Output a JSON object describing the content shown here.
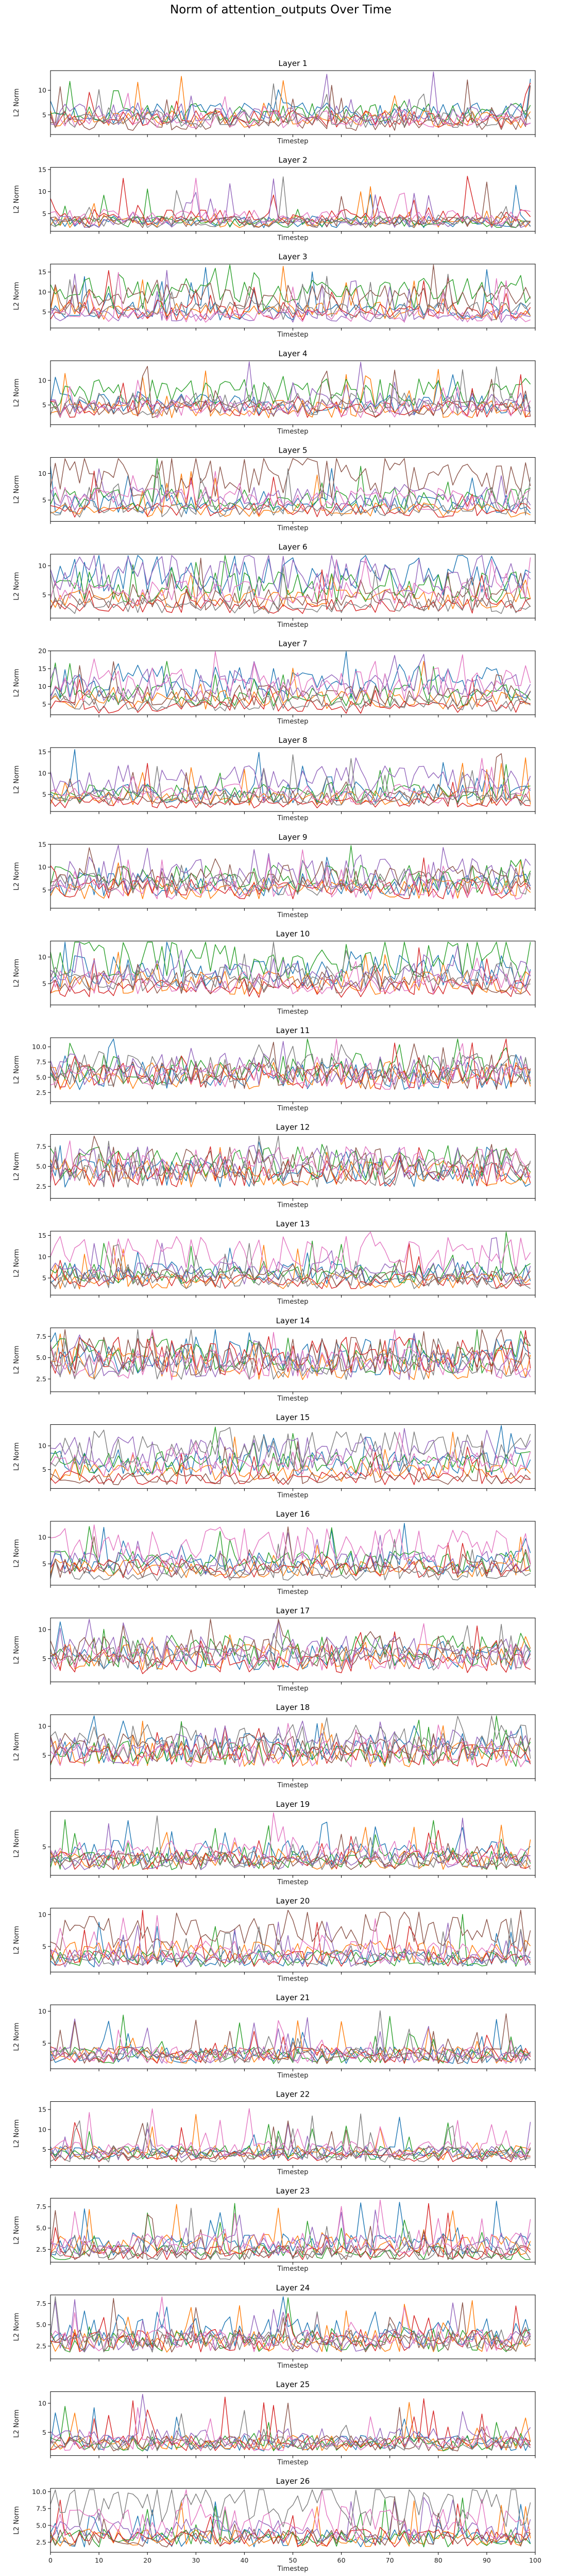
{
  "chart_data": {
    "type": "line",
    "title": "Norm of attention_outputs Over Time",
    "xlabel": "Timestep",
    "ylabel": "L2 Norm",
    "xlim": [
      0,
      100
    ],
    "xticks": [
      0,
      10,
      20,
      30,
      40,
      50,
      60,
      70,
      80,
      90,
      100
    ],
    "grid": false,
    "colors": [
      "#1f77b4",
      "#ff7f0e",
      "#2ca02c",
      "#d62728",
      "#9467bd",
      "#8c564b",
      "#e377c2",
      "#7f7f7f"
    ],
    "layers": [
      {
        "title": "Layer 1",
        "ylim": [
          1,
          14
        ],
        "yticks": [
          5,
          10
        ],
        "ytick_labels": [
          "5",
          "10"
        ],
        "series_levels": [
          5,
          4,
          5,
          4,
          5,
          3,
          4,
          4
        ]
      },
      {
        "title": "Layer 2",
        "ylim": [
          1,
          15.5
        ],
        "yticks": [
          5,
          10,
          15
        ],
        "ytick_labels": [
          "5",
          "10",
          "15"
        ],
        "series_levels": [
          3,
          3,
          3,
          4,
          3,
          3,
          4,
          3
        ]
      },
      {
        "title": "Layer 3",
        "ylim": [
          1,
          17
        ],
        "yticks": [
          5,
          10,
          15
        ],
        "ytick_labels": [
          "5",
          "10",
          "15"
        ],
        "series_levels": [
          5,
          5,
          9,
          5,
          4,
          8,
          4,
          5
        ]
      },
      {
        "title": "Layer 4",
        "ylim": [
          1,
          14
        ],
        "yticks": [
          5,
          10
        ],
        "ytick_labels": [
          "5",
          "10"
        ],
        "series_levels": [
          5,
          4,
          7,
          4,
          5,
          4,
          4,
          5
        ]
      },
      {
        "title": "Layer 5",
        "ylim": [
          1,
          13
        ],
        "yticks": [
          5,
          10
        ],
        "ytick_labels": [
          "5",
          "10"
        ],
        "series_levels": [
          4,
          3,
          5,
          3,
          5,
          9,
          5,
          3
        ]
      },
      {
        "title": "Layer 6",
        "ylim": [
          1,
          12
        ],
        "yticks": [
          5,
          10
        ],
        "ytick_labels": [
          "5",
          "10"
        ],
        "series_levels": [
          8,
          4,
          6,
          3,
          8,
          4,
          5,
          3
        ]
      },
      {
        "title": "Layer 7",
        "ylim": [
          2,
          20
        ],
        "yticks": [
          5,
          10,
          15,
          20
        ],
        "ytick_labels": [
          "5",
          "10",
          "15",
          "20"
        ],
        "series_levels": [
          11,
          6,
          7,
          4,
          9,
          7,
          10,
          5
        ]
      },
      {
        "title": "Layer 8",
        "ylim": [
          1,
          16
        ],
        "yticks": [
          5,
          10,
          15
        ],
        "ytick_labels": [
          "5",
          "10",
          "15"
        ],
        "series_levels": [
          5,
          4,
          5,
          3,
          8,
          4,
          5,
          4
        ]
      },
      {
        "title": "Layer 9",
        "ylim": [
          1,
          15
        ],
        "yticks": [
          5,
          10,
          15
        ],
        "ytick_labels": [
          "5",
          "10",
          "15"
        ],
        "series_levels": [
          6,
          5,
          7,
          5,
          8,
          7,
          5,
          6
        ]
      },
      {
        "title": "Layer 10",
        "ylim": [
          1,
          13
        ],
        "yticks": [
          5,
          10
        ],
        "ytick_labels": [
          "5",
          "10"
        ],
        "series_levels": [
          7,
          5,
          9,
          4,
          6,
          5,
          5,
          6
        ]
      },
      {
        "title": "Layer 11",
        "ylim": [
          1,
          11.5
        ],
        "yticks": [
          2.5,
          5,
          7.5,
          10
        ],
        "ytick_labels": [
          "2.5",
          "5.0",
          "7.5",
          "10.0"
        ],
        "series_levels": [
          5,
          5,
          6,
          5,
          6,
          5,
          5,
          6
        ]
      },
      {
        "title": "Layer 12",
        "ylim": [
          1,
          9
        ],
        "yticks": [
          2.5,
          5,
          7.5
        ],
        "ytick_labels": [
          "2.5",
          "5.0",
          "7.5"
        ],
        "series_levels": [
          4,
          4,
          5,
          4,
          5,
          5,
          5,
          4
        ]
      },
      {
        "title": "Layer 13",
        "ylim": [
          1,
          16
        ],
        "yticks": [
          5,
          10,
          15
        ],
        "ytick_labels": [
          "5",
          "10",
          "15"
        ],
        "series_levels": [
          6,
          4,
          6,
          4,
          6,
          5,
          10,
          4
        ]
      },
      {
        "title": "Layer 14",
        "ylim": [
          1,
          8.5
        ],
        "yticks": [
          2.5,
          5,
          7.5
        ],
        "ytick_labels": [
          "2.5",
          "5.0",
          "7.5"
        ],
        "series_levels": [
          5,
          4,
          5,
          5,
          4,
          5,
          4,
          4
        ]
      },
      {
        "title": "Layer 15",
        "ylim": [
          1,
          14.5
        ],
        "yticks": [
          5,
          10
        ],
        "ytick_labels": [
          "5",
          "10"
        ],
        "series_levels": [
          6,
          4,
          6,
          3,
          8,
          3,
          6,
          9
        ]
      },
      {
        "title": "Layer 16",
        "ylim": [
          1,
          13
        ],
        "yticks": [
          5,
          10
        ],
        "ytick_labels": [
          "5",
          "10"
        ],
        "series_levels": [
          5,
          4,
          5,
          4,
          5,
          4,
          8,
          3
        ]
      },
      {
        "title": "Layer 17",
        "ylim": [
          1,
          12
        ],
        "yticks": [
          5,
          10
        ],
        "ytick_labels": [
          "5",
          "10"
        ],
        "series_levels": [
          5,
          5,
          6,
          4,
          6,
          6,
          5,
          5
        ]
      },
      {
        "title": "Layer 18",
        "ylim": [
          1,
          12
        ],
        "yticks": [
          5,
          10
        ],
        "ytick_labels": [
          "5",
          "10"
        ],
        "series_levels": [
          6,
          5,
          5,
          5,
          6,
          6,
          5,
          7
        ]
      },
      {
        "title": "Layer 19",
        "ylim": [
          1,
          10
        ],
        "yticks": [
          5
        ],
        "ytick_labels": [
          "5"
        ],
        "series_levels": [
          4,
          3,
          3,
          3,
          3,
          3,
          4,
          3
        ]
      },
      {
        "title": "Layer 20",
        "ylim": [
          1,
          11
        ],
        "yticks": [
          5,
          10
        ],
        "ytick_labels": [
          "5",
          "10"
        ],
        "series_levels": [
          3,
          4,
          3,
          3,
          3,
          7,
          4,
          3
        ]
      },
      {
        "title": "Layer 21",
        "ylim": [
          1,
          11
        ],
        "yticks": [
          5,
          10
        ],
        "ytick_labels": [
          "5",
          "10"
        ],
        "series_levels": [
          3,
          3,
          3,
          3,
          3,
          3,
          3,
          3
        ]
      },
      {
        "title": "Layer 22",
        "ylim": [
          1,
          17
        ],
        "yticks": [
          5,
          10,
          15
        ],
        "ytick_labels": [
          "5",
          "10",
          "15"
        ],
        "series_levels": [
          4,
          4,
          4,
          3,
          4,
          4,
          5,
          3
        ]
      },
      {
        "title": "Layer 23",
        "ylim": [
          1,
          8.5
        ],
        "yticks": [
          2.5,
          5,
          7.5
        ],
        "ytick_labels": [
          "2.5",
          "5.0",
          "7.5"
        ],
        "series_levels": [
          3,
          3,
          2,
          2,
          3,
          2,
          3,
          2
        ]
      },
      {
        "title": "Layer 24",
        "ylim": [
          1,
          8.5
        ],
        "yticks": [
          2.5,
          5,
          7.5
        ],
        "ytick_labels": [
          "2.5",
          "5.0",
          "7.5"
        ],
        "series_levels": [
          4,
          3,
          3,
          3,
          3,
          3,
          3,
          3
        ]
      },
      {
        "title": "Layer 25",
        "ylim": [
          1,
          12
        ],
        "yticks": [
          5,
          10
        ],
        "ytick_labels": [
          "5",
          "10"
        ],
        "series_levels": [
          3,
          3,
          3,
          3,
          4,
          3,
          3,
          3
        ]
      },
      {
        "title": "Layer 26",
        "ylim": [
          1,
          10.5
        ],
        "yticks": [
          2.5,
          5,
          7.5,
          10
        ],
        "ytick_labels": [
          "2.5",
          "5.0",
          "7.5",
          "10.0"
        ],
        "series_levels": [
          3,
          3,
          3,
          3,
          4,
          3,
          5,
          8
        ]
      }
    ]
  }
}
